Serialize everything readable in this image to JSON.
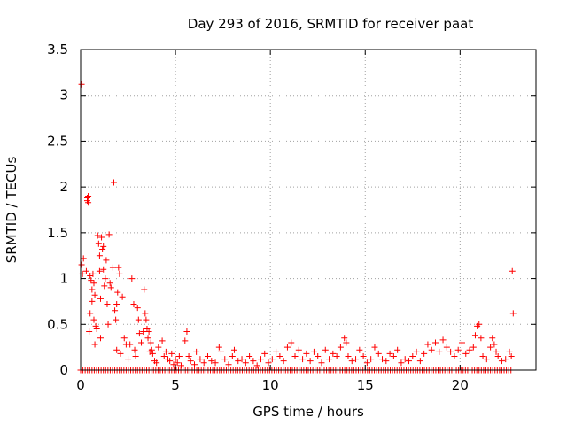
{
  "chart_data": {
    "type": "scatter",
    "title": "Day 293 of 2016, SRMTID for receiver paat",
    "xlabel": "GPS time / hours",
    "ylabel": "SRMTID / TECUs",
    "xlim": [
      0,
      24
    ],
    "ylim": [
      0,
      3.5
    ],
    "x_ticks": [
      0,
      5,
      10,
      15,
      20
    ],
    "x_tick_labels": [
      "0",
      "5",
      "10",
      "15",
      "20"
    ],
    "y_ticks": [
      0,
      0.5,
      1,
      1.5,
      2,
      2.5,
      3,
      3.5
    ],
    "y_tick_labels": [
      "0",
      "0.5",
      "1",
      "1.5",
      "2",
      "2.5",
      "3",
      "3.5"
    ],
    "grid": true,
    "marker": "+",
    "color": "#ff0000",
    "series": [
      {
        "name": "SRMTID",
        "points": [
          [
            0.05,
            3.12
          ],
          [
            0.05,
            1.15
          ],
          [
            0.1,
            1.05
          ],
          [
            0.15,
            1.22
          ],
          [
            0.3,
            1.08
          ],
          [
            0.35,
            1.88
          ],
          [
            0.35,
            1.85
          ],
          [
            0.4,
            1.9
          ],
          [
            0.4,
            1.83
          ],
          [
            0.45,
            0.42
          ],
          [
            0.5,
            1.03
          ],
          [
            0.5,
            0.62
          ],
          [
            0.55,
            0.98
          ],
          [
            0.6,
            0.88
          ],
          [
            0.6,
            0.75
          ],
          [
            0.65,
            1.05
          ],
          [
            0.7,
            0.95
          ],
          [
            0.7,
            0.55
          ],
          [
            0.75,
            0.82
          ],
          [
            0.75,
            0.28
          ],
          [
            0.8,
            0.48
          ],
          [
            0.85,
            0.45
          ],
          [
            0.9,
            1.47
          ],
          [
            0.95,
            1.38
          ],
          [
            1.0,
            1.25
          ],
          [
            1.0,
            1.08
          ],
          [
            1.05,
            0.78
          ],
          [
            1.05,
            0.35
          ],
          [
            1.1,
            1.45
          ],
          [
            1.15,
            1.32
          ],
          [
            1.2,
            1.35
          ],
          [
            1.2,
            1.1
          ],
          [
            1.25,
            0.92
          ],
          [
            1.3,
            1.0
          ],
          [
            1.35,
            1.2
          ],
          [
            1.4,
            0.72
          ],
          [
            1.45,
            0.5
          ],
          [
            1.5,
            1.48
          ],
          [
            1.55,
            0.95
          ],
          [
            1.6,
            0.9
          ],
          [
            1.7,
            1.12
          ],
          [
            1.75,
            2.05
          ],
          [
            1.8,
            0.65
          ],
          [
            1.85,
            0.55
          ],
          [
            1.9,
            0.22
          ],
          [
            1.9,
            0.72
          ],
          [
            1.95,
            0.85
          ],
          [
            2.0,
            1.12
          ],
          [
            2.05,
            1.05
          ],
          [
            2.1,
            0.18
          ],
          [
            2.2,
            0.8
          ],
          [
            2.3,
            0.35
          ],
          [
            2.4,
            0.28
          ],
          [
            2.5,
            0.12
          ],
          [
            2.6,
            0.28
          ],
          [
            2.7,
            1.0
          ],
          [
            2.8,
            0.72
          ],
          [
            2.85,
            0.22
          ],
          [
            2.9,
            0.15
          ],
          [
            3.0,
            0.68
          ],
          [
            3.05,
            0.55
          ],
          [
            3.1,
            0.4
          ],
          [
            3.2,
            0.3
          ],
          [
            3.3,
            0.42
          ],
          [
            3.35,
            0.88
          ],
          [
            3.4,
            0.62
          ],
          [
            3.45,
            0.55
          ],
          [
            3.5,
            0.45
          ],
          [
            3.55,
            0.35
          ],
          [
            3.6,
            0.42
          ],
          [
            3.65,
            0.2
          ],
          [
            3.7,
            0.3
          ],
          [
            3.75,
            0.22
          ],
          [
            3.8,
            0.18
          ],
          [
            3.9,
            0.1
          ],
          [
            4.0,
            0.08
          ],
          [
            4.1,
            0.25
          ],
          [
            4.3,
            0.32
          ],
          [
            4.4,
            0.15
          ],
          [
            4.5,
            0.2
          ],
          [
            4.6,
            0.12
          ],
          [
            4.7,
            0.1
          ],
          [
            4.8,
            0.18
          ],
          [
            4.9,
            0.06
          ],
          [
            5.0,
            0.12
          ],
          [
            5.1,
            0.08
          ],
          [
            5.2,
            0.15
          ],
          [
            5.3,
            0.05
          ],
          [
            5.5,
            0.32
          ],
          [
            5.6,
            0.42
          ],
          [
            5.7,
            0.15
          ],
          [
            5.8,
            0.1
          ],
          [
            6.0,
            0.06
          ],
          [
            6.1,
            0.2
          ],
          [
            6.3,
            0.12
          ],
          [
            6.5,
            0.08
          ],
          [
            6.7,
            0.15
          ],
          [
            6.9,
            0.1
          ],
          [
            7.1,
            0.08
          ],
          [
            7.3,
            0.25
          ],
          [
            7.4,
            0.2
          ],
          [
            7.6,
            0.12
          ],
          [
            7.8,
            0.06
          ],
          [
            8.0,
            0.15
          ],
          [
            8.1,
            0.22
          ],
          [
            8.3,
            0.1
          ],
          [
            8.5,
            0.12
          ],
          [
            8.7,
            0.08
          ],
          [
            8.9,
            0.15
          ],
          [
            9.1,
            0.1
          ],
          [
            9.3,
            0.05
          ],
          [
            9.5,
            0.12
          ],
          [
            9.7,
            0.18
          ],
          [
            9.9,
            0.08
          ],
          [
            10.1,
            0.12
          ],
          [
            10.3,
            0.2
          ],
          [
            10.5,
            0.15
          ],
          [
            10.7,
            0.1
          ],
          [
            10.9,
            0.25
          ],
          [
            11.1,
            0.3
          ],
          [
            11.3,
            0.15
          ],
          [
            11.5,
            0.22
          ],
          [
            11.7,
            0.12
          ],
          [
            11.9,
            0.18
          ],
          [
            12.1,
            0.1
          ],
          [
            12.3,
            0.2
          ],
          [
            12.5,
            0.15
          ],
          [
            12.7,
            0.08
          ],
          [
            12.9,
            0.22
          ],
          [
            13.1,
            0.12
          ],
          [
            13.3,
            0.18
          ],
          [
            13.5,
            0.15
          ],
          [
            13.7,
            0.25
          ],
          [
            13.9,
            0.35
          ],
          [
            14.0,
            0.3
          ],
          [
            14.1,
            0.15
          ],
          [
            14.3,
            0.1
          ],
          [
            14.5,
            0.12
          ],
          [
            14.7,
            0.22
          ],
          [
            14.9,
            0.15
          ],
          [
            15.1,
            0.08
          ],
          [
            15.3,
            0.12
          ],
          [
            15.5,
            0.25
          ],
          [
            15.7,
            0.18
          ],
          [
            15.9,
            0.12
          ],
          [
            16.1,
            0.1
          ],
          [
            16.3,
            0.18
          ],
          [
            16.5,
            0.15
          ],
          [
            16.7,
            0.22
          ],
          [
            16.9,
            0.08
          ],
          [
            17.1,
            0.12
          ],
          [
            17.3,
            0.1
          ],
          [
            17.5,
            0.15
          ],
          [
            17.7,
            0.2
          ],
          [
            17.9,
            0.1
          ],
          [
            18.1,
            0.18
          ],
          [
            18.3,
            0.28
          ],
          [
            18.5,
            0.22
          ],
          [
            18.7,
            0.3
          ],
          [
            18.9,
            0.2
          ],
          [
            19.1,
            0.33
          ],
          [
            19.3,
            0.25
          ],
          [
            19.5,
            0.2
          ],
          [
            19.7,
            0.15
          ],
          [
            19.9,
            0.22
          ],
          [
            20.1,
            0.3
          ],
          [
            20.3,
            0.18
          ],
          [
            20.5,
            0.22
          ],
          [
            20.7,
            0.25
          ],
          [
            20.8,
            0.38
          ],
          [
            20.9,
            0.48
          ],
          [
            21.0,
            0.5
          ],
          [
            21.1,
            0.35
          ],
          [
            21.2,
            0.15
          ],
          [
            21.4,
            0.12
          ],
          [
            21.6,
            0.25
          ],
          [
            21.7,
            0.35
          ],
          [
            21.8,
            0.28
          ],
          [
            21.9,
            0.2
          ],
          [
            22.0,
            0.15
          ],
          [
            22.2,
            0.1
          ],
          [
            22.4,
            0.12
          ],
          [
            22.6,
            0.2
          ],
          [
            22.7,
            0.15
          ],
          [
            22.75,
            1.08
          ],
          [
            22.8,
            0.62
          ]
        ]
      }
    ]
  }
}
